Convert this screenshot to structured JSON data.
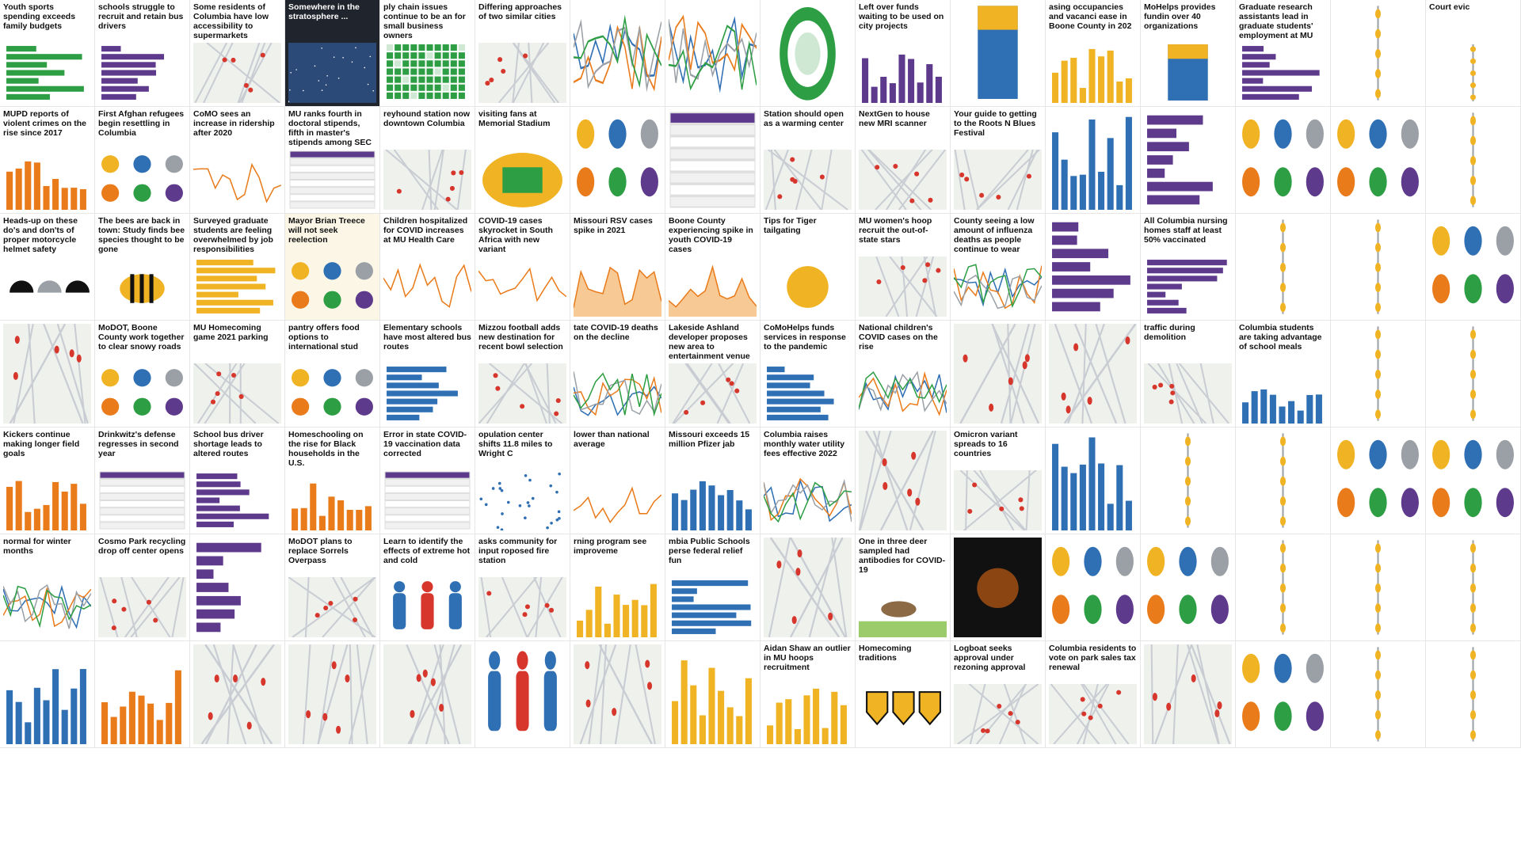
{
  "palette": {
    "gold": "#f0b323",
    "black": "#111111",
    "orange": "#e97b1b",
    "purple": "#5e3a8c",
    "blue": "#2f6fb3",
    "green": "#2e9e44",
    "red": "#d7362c",
    "gray": "#9aa0a6",
    "teal": "#2aa6a0"
  },
  "tiles": [
    {
      "headline": "Youth sports spending exceeds family budgets",
      "viz": "hbar-green",
      "tone": ""
    },
    {
      "headline": "schools struggle to recruit and retain bus drivers",
      "viz": "hbar-purple",
      "tone": ""
    },
    {
      "headline": "Some residents of Columbia have low accessibility to supermarkets",
      "viz": "map",
      "tone": ""
    },
    {
      "headline": "Somewhere in the stratosphere ...",
      "viz": "sky",
      "tone": "dark"
    },
    {
      "headline": "ply chain issues continue to be an for small business owners",
      "viz": "waffle-green",
      "tone": ""
    },
    {
      "headline": "Differing approaches of two similar cities",
      "viz": "map",
      "tone": ""
    },
    {
      "headline": "",
      "viz": "line-multi",
      "tone": "blank"
    },
    {
      "headline": "",
      "viz": "line-multi",
      "tone": "blank"
    },
    {
      "headline": "",
      "viz": "ring",
      "tone": "blank"
    },
    {
      "headline": "Left over funds waiting to be used on city projects",
      "viz": "vbar-purple",
      "tone": ""
    },
    {
      "headline": "",
      "viz": "stack-blue",
      "tone": "blank"
    },
    {
      "headline": "asing occupancies and vacanci ease in Boone County in 202",
      "viz": "vbar-gold",
      "tone": ""
    },
    {
      "headline": "MoHelps provides fundin over 40 organizations",
      "viz": "stack-blue",
      "tone": ""
    },
    {
      "headline": "Graduate research assistants lead in graduate students' employment at MU",
      "viz": "hbar-purple",
      "tone": ""
    },
    {
      "headline": "",
      "viz": "timeline",
      "tone": "blank"
    },
    {
      "headline": "Court evic",
      "viz": "timeline",
      "tone": ""
    },
    {
      "headline": "MUPD reports of violent crimes on the rise since 2017",
      "viz": "vbar-red",
      "tone": ""
    },
    {
      "headline": "First Afghan refugees begin resettling in Columbia",
      "viz": "icons",
      "tone": ""
    },
    {
      "headline": "CoMO sees an increase in ridership after 2020",
      "viz": "line-orange",
      "tone": ""
    },
    {
      "headline": "MU ranks fourth in doctoral stipends, fifth in master's stipends among SEC colleges",
      "viz": "table",
      "tone": ""
    },
    {
      "headline": "reyhound station now downtown Columbia",
      "viz": "map",
      "tone": ""
    },
    {
      "headline": "visiting fans at Memorial Stadium",
      "viz": "stadium",
      "tone": ""
    },
    {
      "headline": "",
      "viz": "icons",
      "tone": "blank"
    },
    {
      "headline": "",
      "viz": "table",
      "tone": "blank"
    },
    {
      "headline": "Station should open as a warming center",
      "viz": "map",
      "tone": ""
    },
    {
      "headline": "NextGen to house new MRI scanner",
      "viz": "map",
      "tone": ""
    },
    {
      "headline": "Your guide to getting to the Roots N Blues Festival",
      "viz": "map",
      "tone": ""
    },
    {
      "headline": "",
      "viz": "vbar-blue",
      "tone": "blank"
    },
    {
      "headline": "",
      "viz": "hbar-purple",
      "tone": "blank"
    },
    {
      "headline": "",
      "viz": "icons",
      "tone": "blank"
    },
    {
      "headline": "",
      "viz": "icons",
      "tone": "blank"
    },
    {
      "headline": "",
      "viz": "timeline",
      "tone": "blank"
    },
    {
      "headline": "Heads-up on these do's and don'ts of proper motorcycle helmet safety",
      "viz": "helmets",
      "tone": ""
    },
    {
      "headline": "The bees are back in town: Study finds bee species thought to be gone",
      "viz": "bee",
      "tone": ""
    },
    {
      "headline": "Surveyed graduate students are feeling overwhelmed by job responsibilities",
      "viz": "hbar-gold",
      "tone": ""
    },
    {
      "headline": "Mayor Brian Treece will not seek reelection",
      "viz": "icons",
      "tone": "tinted"
    },
    {
      "headline": "Children hospitalized for COVID increases at MU Health Care",
      "viz": "line-orange",
      "tone": ""
    },
    {
      "headline": "COVID-19 cases skyrocket in South Africa with new variant",
      "viz": "line-orange",
      "tone": ""
    },
    {
      "headline": "Missouri RSV cases spike in 2021",
      "viz": "area-orange",
      "tone": ""
    },
    {
      "headline": "Boone County experiencing spike in youth COVID-19 cases",
      "viz": "area-orange",
      "tone": ""
    },
    {
      "headline": "Tips for Tiger tailgating",
      "viz": "tailgate",
      "tone": ""
    },
    {
      "headline": "MU women's hoop recruit the out-of-state stars",
      "viz": "map",
      "tone": ""
    },
    {
      "headline": "County seeing a low amount of influenza deaths as people continue to wear masks",
      "viz": "line-multi",
      "tone": ""
    },
    {
      "headline": "",
      "viz": "hbar-purple",
      "tone": "blank"
    },
    {
      "headline": "All Columbia nursing homes staff at least 50% vaccinated",
      "viz": "hbar-purple",
      "tone": ""
    },
    {
      "headline": "",
      "viz": "timeline",
      "tone": "blank"
    },
    {
      "headline": "",
      "viz": "timeline",
      "tone": "blank"
    },
    {
      "headline": "",
      "viz": "icons",
      "tone": "blank"
    },
    {
      "headline": "",
      "viz": "map",
      "tone": "blank"
    },
    {
      "headline": "MoDOT, Boone County work together to clear snowy roads",
      "viz": "icons",
      "tone": ""
    },
    {
      "headline": "MU Homecoming game 2021 parking",
      "viz": "map",
      "tone": ""
    },
    {
      "headline": "pantry offers food options to international stud",
      "viz": "icons",
      "tone": ""
    },
    {
      "headline": "Elementary schools have most altered bus routes",
      "viz": "hbar-blue",
      "tone": ""
    },
    {
      "headline": "Mizzou football adds new destination for recent bowl selection",
      "viz": "map",
      "tone": ""
    },
    {
      "headline": "tate COVID-19 deaths on the decline",
      "viz": "line-multi",
      "tone": ""
    },
    {
      "headline": "Lakeside Ashland developer proposes new area to entertainment venue",
      "viz": "map",
      "tone": ""
    },
    {
      "headline": "CoMoHelps funds services in response to the pandemic",
      "viz": "hbar-blue",
      "tone": ""
    },
    {
      "headline": "National children's COVID cases on the rise",
      "viz": "line-multi",
      "tone": ""
    },
    {
      "headline": "",
      "viz": "map",
      "tone": "blank"
    },
    {
      "headline": "",
      "viz": "map",
      "tone": "blank"
    },
    {
      "headline": "traffic during demolition",
      "viz": "map",
      "tone": ""
    },
    {
      "headline": "Columbia students are taking advantage of school meals",
      "viz": "vbar-blue",
      "tone": ""
    },
    {
      "headline": "",
      "viz": "timeline",
      "tone": "blank"
    },
    {
      "headline": "",
      "viz": "timeline",
      "tone": "blank"
    },
    {
      "headline": "Kickers continue making longer field goals",
      "viz": "vbar-orange",
      "tone": ""
    },
    {
      "headline": "Drinkwitz's defense regresses in second year",
      "viz": "table",
      "tone": ""
    },
    {
      "headline": "School bus driver shortage leads to altered routes",
      "viz": "hbar-purple",
      "tone": ""
    },
    {
      "headline": "Homeschooling on the rise for Black households in the U.S.",
      "viz": "vbar-orange",
      "tone": ""
    },
    {
      "headline": "Error in state COVID-19 vaccination data corrected",
      "viz": "table",
      "tone": ""
    },
    {
      "headline": "opulation center shifts 11.8 miles to Wright C",
      "viz": "scatter",
      "tone": ""
    },
    {
      "headline": "lower than national average",
      "viz": "line-orange",
      "tone": ""
    },
    {
      "headline": "Missouri exceeds 15 million Pfizer jab",
      "viz": "vbar-blue",
      "tone": ""
    },
    {
      "headline": "Columbia raises monthly water utility fees effective 2022",
      "viz": "line-multi",
      "tone": ""
    },
    {
      "headline": "",
      "viz": "map",
      "tone": "blank"
    },
    {
      "headline": "Omicron variant spreads to 16 countries",
      "viz": "map",
      "tone": ""
    },
    {
      "headline": "",
      "viz": "vbar-blue",
      "tone": "blank"
    },
    {
      "headline": "",
      "viz": "timeline",
      "tone": "blank"
    },
    {
      "headline": "",
      "viz": "timeline",
      "tone": "blank"
    },
    {
      "headline": "",
      "viz": "icons",
      "tone": "blank"
    },
    {
      "headline": "",
      "viz": "icons",
      "tone": "blank"
    },
    {
      "headline": "normal for winter months",
      "viz": "line-multi",
      "tone": ""
    },
    {
      "headline": "Cosmo Park recycling drop off center opens",
      "viz": "map",
      "tone": ""
    },
    {
      "headline": "",
      "viz": "hbar-purple",
      "tone": "blank"
    },
    {
      "headline": "MoDOT plans to replace Sorrels Overpass",
      "viz": "map",
      "tone": ""
    },
    {
      "headline": "Learn to identify the effects of extreme hot and cold",
      "viz": "body",
      "tone": ""
    },
    {
      "headline": "asks community for input roposed fire station",
      "viz": "map",
      "tone": ""
    },
    {
      "headline": "rning program see improveme",
      "viz": "vbar-gold",
      "tone": ""
    },
    {
      "headline": "mbia Public Schools perse federal relief fun",
      "viz": "hbar-blue",
      "tone": ""
    },
    {
      "headline": "",
      "viz": "map",
      "tone": "blank"
    },
    {
      "headline": "One in three deer sampled had antibodies for COVID-19",
      "viz": "deer",
      "tone": ""
    },
    {
      "headline": "",
      "viz": "football",
      "tone": "blank"
    },
    {
      "headline": "",
      "viz": "icons",
      "tone": "blank"
    },
    {
      "headline": "",
      "viz": "icons",
      "tone": "blank"
    },
    {
      "headline": "",
      "viz": "timeline",
      "tone": "blank"
    },
    {
      "headline": "",
      "viz": "timeline",
      "tone": "blank"
    },
    {
      "headline": "",
      "viz": "timeline",
      "tone": "blank"
    },
    {
      "headline": "",
      "viz": "vbar-blue",
      "tone": "blank"
    },
    {
      "headline": "",
      "viz": "vbar-red",
      "tone": "blank"
    },
    {
      "headline": "",
      "viz": "map",
      "tone": "blank"
    },
    {
      "headline": "",
      "viz": "map",
      "tone": "blank"
    },
    {
      "headline": "",
      "viz": "map",
      "tone": "blank"
    },
    {
      "headline": "",
      "viz": "body",
      "tone": "blank"
    },
    {
      "headline": "",
      "viz": "map",
      "tone": "blank"
    },
    {
      "headline": "",
      "viz": "vbar-gold",
      "tone": "blank"
    },
    {
      "headline": "Aidan Shaw an outlier in MU hoops recruitment",
      "viz": "vbar-gold",
      "tone": ""
    },
    {
      "headline": "Homecoming traditions",
      "viz": "shields",
      "tone": ""
    },
    {
      "headline": "Logboat seeks approval under rezoning approval",
      "viz": "map",
      "tone": ""
    },
    {
      "headline": "Columbia residents to vote on park sales tax renewal",
      "viz": "map",
      "tone": ""
    },
    {
      "headline": "",
      "viz": "map",
      "tone": "blank"
    },
    {
      "headline": "",
      "viz": "icons",
      "tone": "blank"
    },
    {
      "headline": "",
      "viz": "timeline",
      "tone": "blank"
    },
    {
      "headline": "",
      "viz": "timeline",
      "tone": "blank"
    }
  ]
}
